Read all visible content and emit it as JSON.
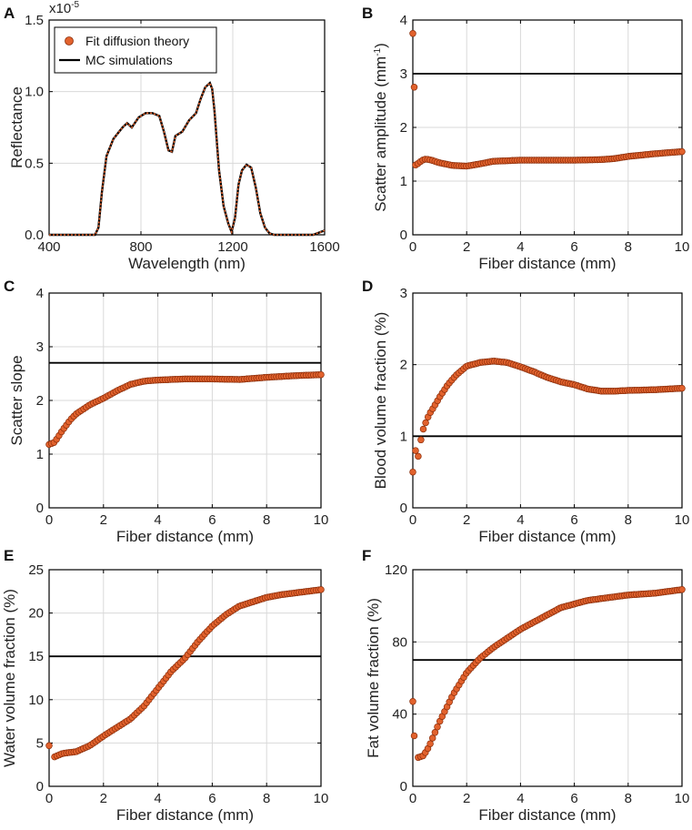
{
  "colors": {
    "marker": "#E2622D",
    "marker_edge": "#8A2D0A",
    "line": "#000000",
    "grid": "#d9d9d9"
  },
  "chart_data": [
    {
      "panel": "A",
      "type": "line",
      "title": "",
      "xlabel": "Wavelength (nm)",
      "ylabel": "Reflectance",
      "y_multiplier": "x10",
      "y_multiplier_exp": "-5",
      "xlim": [
        400,
        1600
      ],
      "ylim": [
        0,
        1.5
      ],
      "xticks": [
        400,
        800,
        1200,
        1600
      ],
      "yticks": [
        0,
        0.5,
        1,
        1.5
      ],
      "ytick_labels": [
        "0.0",
        "0.5",
        "1.0",
        "1.5"
      ],
      "legend": [
        "Fit diffusion theory",
        "MC simulations"
      ],
      "legend_position": "top-left",
      "series": [
        {
          "name": "MC simulations",
          "x": [
            400,
            500,
            600,
            615,
            630,
            650,
            680,
            720,
            740,
            760,
            790,
            820,
            850,
            880,
            900,
            920,
            935,
            950,
            980,
            1010,
            1040,
            1060,
            1080,
            1100,
            1110,
            1120,
            1140,
            1160,
            1180,
            1195,
            1210,
            1225,
            1240,
            1260,
            1280,
            1300,
            1320,
            1340,
            1360,
            1380,
            1400,
            1450,
            1500,
            1550,
            1600
          ],
          "y": [
            0,
            0,
            0,
            0.05,
            0.3,
            0.55,
            0.67,
            0.75,
            0.78,
            0.75,
            0.82,
            0.85,
            0.85,
            0.83,
            0.72,
            0.59,
            0.58,
            0.69,
            0.72,
            0.8,
            0.85,
            0.95,
            1.03,
            1.06,
            1.02,
            0.87,
            0.45,
            0.2,
            0.08,
            0.02,
            0.12,
            0.35,
            0.45,
            0.49,
            0.47,
            0.33,
            0.15,
            0.05,
            0.01,
            0,
            0,
            0,
            0,
            0,
            0.03
          ]
        },
        {
          "name": "Fit diffusion theory",
          "style": "dotted-markers",
          "x": [
            400,
            500,
            600,
            615,
            630,
            650,
            680,
            720,
            740,
            760,
            790,
            820,
            850,
            880,
            900,
            920,
            935,
            950,
            980,
            1010,
            1040,
            1060,
            1080,
            1100,
            1110,
            1120,
            1140,
            1160,
            1180,
            1195,
            1210,
            1225,
            1240,
            1260,
            1280,
            1300,
            1320,
            1340,
            1360,
            1380,
            1400,
            1450,
            1500,
            1550,
            1600
          ],
          "y": [
            0,
            0,
            0,
            0.05,
            0.3,
            0.55,
            0.67,
            0.75,
            0.78,
            0.75,
            0.82,
            0.85,
            0.85,
            0.83,
            0.72,
            0.59,
            0.58,
            0.69,
            0.72,
            0.8,
            0.85,
            0.95,
            1.03,
            1.06,
            1.02,
            0.87,
            0.45,
            0.2,
            0.08,
            0.02,
            0.12,
            0.35,
            0.45,
            0.49,
            0.47,
            0.33,
            0.15,
            0.05,
            0.01,
            0,
            0,
            0,
            0,
            0,
            0.03
          ]
        }
      ]
    },
    {
      "panel": "B",
      "type": "scatter",
      "xlabel": "Fiber distance (mm)",
      "ylabel": "Scatter amplitude (mm",
      "ylabel_sup": "-1",
      "ylabel_tail": ")",
      "xlim": [
        0,
        10
      ],
      "ylim": [
        0,
        4
      ],
      "xticks": [
        0,
        2,
        4,
        6,
        8,
        10
      ],
      "yticks": [
        0,
        1,
        2,
        3,
        4
      ],
      "ytick_labels": [
        "0",
        "1",
        "2",
        "3",
        "4"
      ],
      "reference_line": 3,
      "curve": {
        "x": [
          0.1,
          0.2,
          0.3,
          0.4,
          0.5,
          0.7,
          1.0,
          1.5,
          2.0,
          2.5,
          3.0,
          4.0,
          5.0,
          6.0,
          7.0,
          7.5,
          8.0,
          9.0,
          10.0
        ],
        "y": [
          1.3,
          1.33,
          1.37,
          1.4,
          1.41,
          1.39,
          1.34,
          1.29,
          1.28,
          1.32,
          1.37,
          1.39,
          1.39,
          1.39,
          1.4,
          1.42,
          1.46,
          1.51,
          1.55
        ]
      },
      "extra_points": [
        {
          "x": 0.0,
          "y": 3.75
        },
        {
          "x": 0.05,
          "y": 2.75
        }
      ]
    },
    {
      "panel": "C",
      "type": "scatter",
      "xlabel": "Fiber distance (mm)",
      "ylabel": "Scatter slope",
      "xlim": [
        0,
        10
      ],
      "ylim": [
        0,
        4
      ],
      "xticks": [
        0,
        2,
        4,
        6,
        8,
        10
      ],
      "yticks": [
        0,
        1,
        2,
        3,
        4
      ],
      "ytick_labels": [
        "0",
        "1",
        "2",
        "3",
        "4"
      ],
      "reference_line": 2.7,
      "curve": {
        "x": [
          0,
          0.2,
          0.5,
          0.8,
          1.0,
          1.5,
          2.0,
          2.5,
          3.0,
          3.5,
          4.0,
          5.0,
          6.0,
          7.0,
          8.0,
          9.0,
          10.0
        ],
        "y": [
          1.18,
          1.22,
          1.45,
          1.65,
          1.75,
          1.92,
          2.04,
          2.18,
          2.3,
          2.36,
          2.38,
          2.4,
          2.4,
          2.39,
          2.43,
          2.46,
          2.48
        ]
      },
      "extra_points": []
    },
    {
      "panel": "D",
      "type": "scatter",
      "xlabel": "Fiber distance (mm)",
      "ylabel": "Blood volume fraction (%)",
      "xlim": [
        0,
        10
      ],
      "ylim": [
        0,
        3
      ],
      "xticks": [
        0,
        2,
        4,
        6,
        8,
        10
      ],
      "yticks": [
        0,
        1,
        2,
        3
      ],
      "ytick_labels": [
        "0",
        "1",
        "2",
        "3"
      ],
      "reference_line": 1,
      "curve": {
        "x": [
          0.3,
          0.4,
          0.6,
          0.8,
          1.0,
          1.3,
          1.6,
          2.0,
          2.5,
          3.0,
          3.5,
          4.0,
          4.5,
          5.0,
          5.5,
          6.0,
          6.5,
          7.0,
          7.5,
          8.0,
          9.0,
          10.0
        ],
        "y": [
          0.95,
          1.12,
          1.3,
          1.42,
          1.55,
          1.72,
          1.85,
          1.98,
          2.03,
          2.05,
          2.03,
          1.97,
          1.9,
          1.82,
          1.76,
          1.72,
          1.66,
          1.63,
          1.63,
          1.64,
          1.65,
          1.67
        ]
      },
      "extra_points": [
        {
          "x": 0.0,
          "y": 0.5
        },
        {
          "x": 0.1,
          "y": 0.8
        },
        {
          "x": 0.2,
          "y": 0.72
        }
      ]
    },
    {
      "panel": "E",
      "type": "scatter",
      "xlabel": "Fiber distance (mm)",
      "ylabel": "Water volume fraction (%)",
      "xlim": [
        0,
        10
      ],
      "ylim": [
        0,
        25
      ],
      "xticks": [
        0,
        2,
        4,
        6,
        8,
        10
      ],
      "yticks": [
        0,
        5,
        10,
        15,
        20,
        25
      ],
      "ytick_labels": [
        "0",
        "5",
        "10",
        "15",
        "20",
        "25"
      ],
      "reference_line": 15,
      "curve": {
        "x": [
          0.2,
          0.5,
          1.0,
          1.5,
          2.0,
          2.5,
          3.0,
          3.5,
          4.0,
          4.5,
          5.0,
          5.5,
          6.0,
          6.5,
          7.0,
          7.5,
          8.0,
          8.5,
          9.0,
          10.0
        ],
        "y": [
          3.4,
          3.8,
          4.0,
          4.7,
          5.8,
          6.8,
          7.8,
          9.3,
          11.3,
          13.3,
          14.8,
          16.8,
          18.5,
          19.8,
          20.8,
          21.3,
          21.8,
          22.1,
          22.3,
          22.7
        ]
      },
      "extra_points": [
        {
          "x": 0.0,
          "y": 4.7
        }
      ]
    },
    {
      "panel": "F",
      "type": "scatter",
      "xlabel": "Fiber distance (mm)",
      "ylabel": "Fat volume fraction (%)",
      "xlim": [
        0,
        10
      ],
      "ylim": [
        0,
        120
      ],
      "xticks": [
        0,
        2,
        4,
        6,
        8,
        10
      ],
      "yticks": [
        0,
        40,
        80,
        120
      ],
      "ytick_labels": [
        "0",
        "40",
        "80",
        "120"
      ],
      "reference_line": 70,
      "curve": {
        "x": [
          0.2,
          0.4,
          0.6,
          0.8,
          1.0,
          1.5,
          2.0,
          2.5,
          3.0,
          3.5,
          4.0,
          4.5,
          5.0,
          5.5,
          6.0,
          6.5,
          7.0,
          7.5,
          8.0,
          9.0,
          10.0
        ],
        "y": [
          16,
          17,
          22,
          29,
          36,
          51,
          63,
          71,
          77,
          82,
          87,
          91,
          95,
          99,
          101,
          103,
          104,
          105,
          106,
          107,
          109
        ]
      },
      "extra_points": [
        {
          "x": 0.0,
          "y": 47
        },
        {
          "x": 0.05,
          "y": 28
        }
      ]
    }
  ]
}
